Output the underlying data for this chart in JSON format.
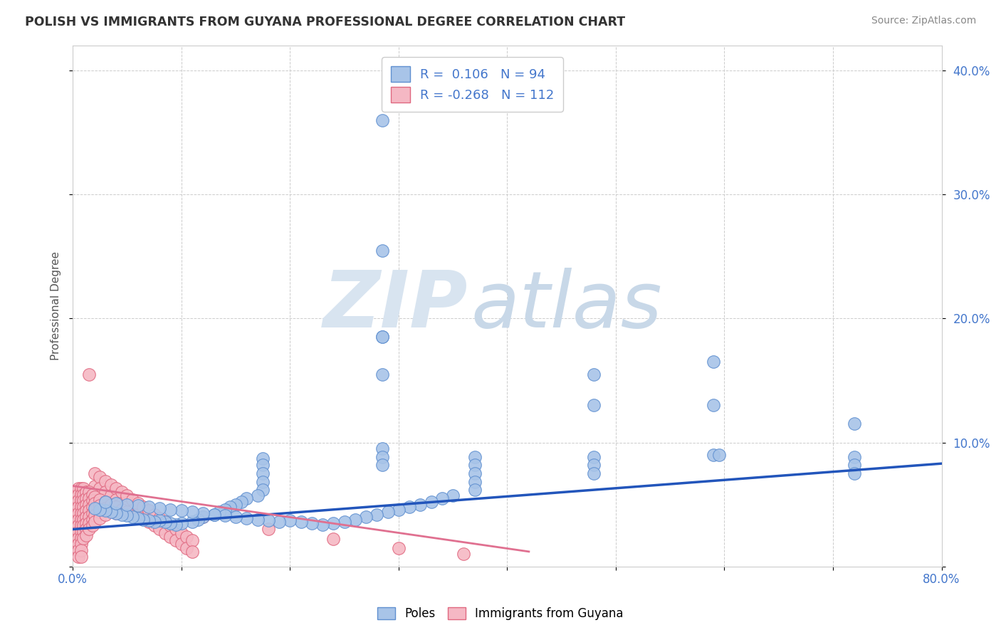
{
  "title": "POLISH VS IMMIGRANTS FROM GUYANA PROFESSIONAL DEGREE CORRELATION CHART",
  "source_text": "Source: ZipAtlas.com",
  "ylabel": "Professional Degree",
  "blue_color": "#a8c4e8",
  "blue_edge_color": "#6090d0",
  "pink_color": "#f5b8c4",
  "pink_edge_color": "#e06880",
  "blue_line_color": "#2255bb",
  "pink_line_color": "#e07090",
  "title_color": "#333333",
  "source_color": "#888888",
  "tick_color": "#4477cc",
  "grid_color": "#cccccc",
  "blue_R": 0.106,
  "blue_N": 94,
  "pink_R": -0.268,
  "pink_N": 112,
  "xlim": [
    0.0,
    0.8
  ],
  "ylim": [
    0.0,
    0.42
  ],
  "blue_line_x0": 0.0,
  "blue_line_x1": 0.8,
  "blue_line_y0": 0.03,
  "blue_line_y1": 0.083,
  "pink_line_x0": 0.0,
  "pink_line_x1": 0.42,
  "pink_line_y0": 0.065,
  "pink_line_y1": 0.012,
  "blue_points": [
    [
      0.285,
      0.36
    ],
    [
      0.285,
      0.255
    ],
    [
      0.285,
      0.185
    ],
    [
      0.285,
      0.155
    ],
    [
      0.285,
      0.185
    ],
    [
      0.48,
      0.155
    ],
    [
      0.48,
      0.13
    ],
    [
      0.59,
      0.165
    ],
    [
      0.59,
      0.13
    ],
    [
      0.59,
      0.09
    ],
    [
      0.595,
      0.09
    ],
    [
      0.72,
      0.115
    ],
    [
      0.285,
      0.095
    ],
    [
      0.285,
      0.088
    ],
    [
      0.285,
      0.082
    ],
    [
      0.175,
      0.087
    ],
    [
      0.175,
      0.082
    ],
    [
      0.175,
      0.075
    ],
    [
      0.175,
      0.068
    ],
    [
      0.175,
      0.062
    ],
    [
      0.17,
      0.057
    ],
    [
      0.16,
      0.055
    ],
    [
      0.155,
      0.052
    ],
    [
      0.15,
      0.05
    ],
    [
      0.145,
      0.048
    ],
    [
      0.14,
      0.046
    ],
    [
      0.135,
      0.044
    ],
    [
      0.13,
      0.042
    ],
    [
      0.12,
      0.04
    ],
    [
      0.115,
      0.038
    ],
    [
      0.11,
      0.036
    ],
    [
      0.1,
      0.035
    ],
    [
      0.095,
      0.034
    ],
    [
      0.09,
      0.035
    ],
    [
      0.085,
      0.036
    ],
    [
      0.08,
      0.037
    ],
    [
      0.075,
      0.036
    ],
    [
      0.07,
      0.037
    ],
    [
      0.065,
      0.038
    ],
    [
      0.06,
      0.039
    ],
    [
      0.055,
      0.04
    ],
    [
      0.05,
      0.041
    ],
    [
      0.045,
      0.042
    ],
    [
      0.04,
      0.043
    ],
    [
      0.035,
      0.044
    ],
    [
      0.03,
      0.045
    ],
    [
      0.025,
      0.046
    ],
    [
      0.02,
      0.047
    ],
    [
      0.48,
      0.088
    ],
    [
      0.48,
      0.082
    ],
    [
      0.48,
      0.075
    ],
    [
      0.37,
      0.088
    ],
    [
      0.37,
      0.082
    ],
    [
      0.37,
      0.075
    ],
    [
      0.37,
      0.068
    ],
    [
      0.37,
      0.062
    ],
    [
      0.35,
      0.057
    ],
    [
      0.34,
      0.055
    ],
    [
      0.33,
      0.052
    ],
    [
      0.32,
      0.05
    ],
    [
      0.31,
      0.048
    ],
    [
      0.3,
      0.046
    ],
    [
      0.29,
      0.044
    ],
    [
      0.28,
      0.042
    ],
    [
      0.27,
      0.04
    ],
    [
      0.26,
      0.038
    ],
    [
      0.25,
      0.036
    ],
    [
      0.24,
      0.035
    ],
    [
      0.23,
      0.034
    ],
    [
      0.22,
      0.035
    ],
    [
      0.21,
      0.036
    ],
    [
      0.2,
      0.037
    ],
    [
      0.19,
      0.036
    ],
    [
      0.18,
      0.037
    ],
    [
      0.17,
      0.038
    ],
    [
      0.16,
      0.039
    ],
    [
      0.15,
      0.04
    ],
    [
      0.14,
      0.041
    ],
    [
      0.13,
      0.042
    ],
    [
      0.12,
      0.043
    ],
    [
      0.11,
      0.044
    ],
    [
      0.1,
      0.045
    ],
    [
      0.09,
      0.046
    ],
    [
      0.08,
      0.047
    ],
    [
      0.07,
      0.048
    ],
    [
      0.06,
      0.049
    ],
    [
      0.05,
      0.05
    ],
    [
      0.04,
      0.051
    ],
    [
      0.03,
      0.052
    ],
    [
      0.72,
      0.088
    ],
    [
      0.72,
      0.082
    ],
    [
      0.72,
      0.075
    ]
  ],
  "pink_points": [
    [
      0.015,
      0.155
    ],
    [
      0.02,
      0.075
    ],
    [
      0.02,
      0.065
    ],
    [
      0.025,
      0.072
    ],
    [
      0.025,
      0.063
    ],
    [
      0.03,
      0.069
    ],
    [
      0.03,
      0.06
    ],
    [
      0.035,
      0.066
    ],
    [
      0.035,
      0.057
    ],
    [
      0.04,
      0.063
    ],
    [
      0.04,
      0.054
    ],
    [
      0.045,
      0.06
    ],
    [
      0.045,
      0.051
    ],
    [
      0.05,
      0.057
    ],
    [
      0.05,
      0.048
    ],
    [
      0.055,
      0.054
    ],
    [
      0.055,
      0.045
    ],
    [
      0.06,
      0.051
    ],
    [
      0.06,
      0.042
    ],
    [
      0.065,
      0.048
    ],
    [
      0.065,
      0.039
    ],
    [
      0.07,
      0.045
    ],
    [
      0.07,
      0.036
    ],
    [
      0.075,
      0.042
    ],
    [
      0.075,
      0.033
    ],
    [
      0.08,
      0.039
    ],
    [
      0.08,
      0.03
    ],
    [
      0.085,
      0.036
    ],
    [
      0.085,
      0.027
    ],
    [
      0.09,
      0.033
    ],
    [
      0.09,
      0.024
    ],
    [
      0.095,
      0.03
    ],
    [
      0.095,
      0.021
    ],
    [
      0.1,
      0.027
    ],
    [
      0.1,
      0.018
    ],
    [
      0.105,
      0.024
    ],
    [
      0.105,
      0.015
    ],
    [
      0.11,
      0.021
    ],
    [
      0.11,
      0.012
    ],
    [
      0.005,
      0.063
    ],
    [
      0.005,
      0.058
    ],
    [
      0.005,
      0.053
    ],
    [
      0.005,
      0.048
    ],
    [
      0.005,
      0.043
    ],
    [
      0.005,
      0.038
    ],
    [
      0.005,
      0.033
    ],
    [
      0.005,
      0.028
    ],
    [
      0.005,
      0.023
    ],
    [
      0.005,
      0.018
    ],
    [
      0.005,
      0.013
    ],
    [
      0.005,
      0.008
    ],
    [
      0.008,
      0.063
    ],
    [
      0.008,
      0.058
    ],
    [
      0.008,
      0.053
    ],
    [
      0.008,
      0.048
    ],
    [
      0.008,
      0.043
    ],
    [
      0.008,
      0.038
    ],
    [
      0.008,
      0.033
    ],
    [
      0.008,
      0.028
    ],
    [
      0.008,
      0.023
    ],
    [
      0.008,
      0.018
    ],
    [
      0.008,
      0.013
    ],
    [
      0.008,
      0.008
    ],
    [
      0.01,
      0.063
    ],
    [
      0.01,
      0.058
    ],
    [
      0.01,
      0.053
    ],
    [
      0.01,
      0.048
    ],
    [
      0.01,
      0.043
    ],
    [
      0.01,
      0.038
    ],
    [
      0.01,
      0.033
    ],
    [
      0.01,
      0.028
    ],
    [
      0.01,
      0.023
    ],
    [
      0.012,
      0.06
    ],
    [
      0.012,
      0.055
    ],
    [
      0.012,
      0.05
    ],
    [
      0.012,
      0.045
    ],
    [
      0.012,
      0.04
    ],
    [
      0.012,
      0.035
    ],
    [
      0.012,
      0.03
    ],
    [
      0.012,
      0.025
    ],
    [
      0.015,
      0.06
    ],
    [
      0.015,
      0.055
    ],
    [
      0.015,
      0.05
    ],
    [
      0.015,
      0.045
    ],
    [
      0.015,
      0.04
    ],
    [
      0.015,
      0.035
    ],
    [
      0.015,
      0.03
    ],
    [
      0.018,
      0.058
    ],
    [
      0.018,
      0.053
    ],
    [
      0.018,
      0.048
    ],
    [
      0.018,
      0.043
    ],
    [
      0.018,
      0.038
    ],
    [
      0.018,
      0.033
    ],
    [
      0.02,
      0.056
    ],
    [
      0.02,
      0.051
    ],
    [
      0.02,
      0.046
    ],
    [
      0.02,
      0.041
    ],
    [
      0.02,
      0.036
    ],
    [
      0.025,
      0.054
    ],
    [
      0.025,
      0.049
    ],
    [
      0.025,
      0.044
    ],
    [
      0.025,
      0.039
    ],
    [
      0.03,
      0.052
    ],
    [
      0.03,
      0.047
    ],
    [
      0.03,
      0.042
    ],
    [
      0.035,
      0.05
    ],
    [
      0.035,
      0.045
    ],
    [
      0.04,
      0.048
    ],
    [
      0.04,
      0.043
    ],
    [
      0.045,
      0.046
    ],
    [
      0.05,
      0.044
    ],
    [
      0.12,
      0.04
    ],
    [
      0.18,
      0.03
    ],
    [
      0.24,
      0.022
    ],
    [
      0.3,
      0.015
    ],
    [
      0.36,
      0.01
    ]
  ]
}
